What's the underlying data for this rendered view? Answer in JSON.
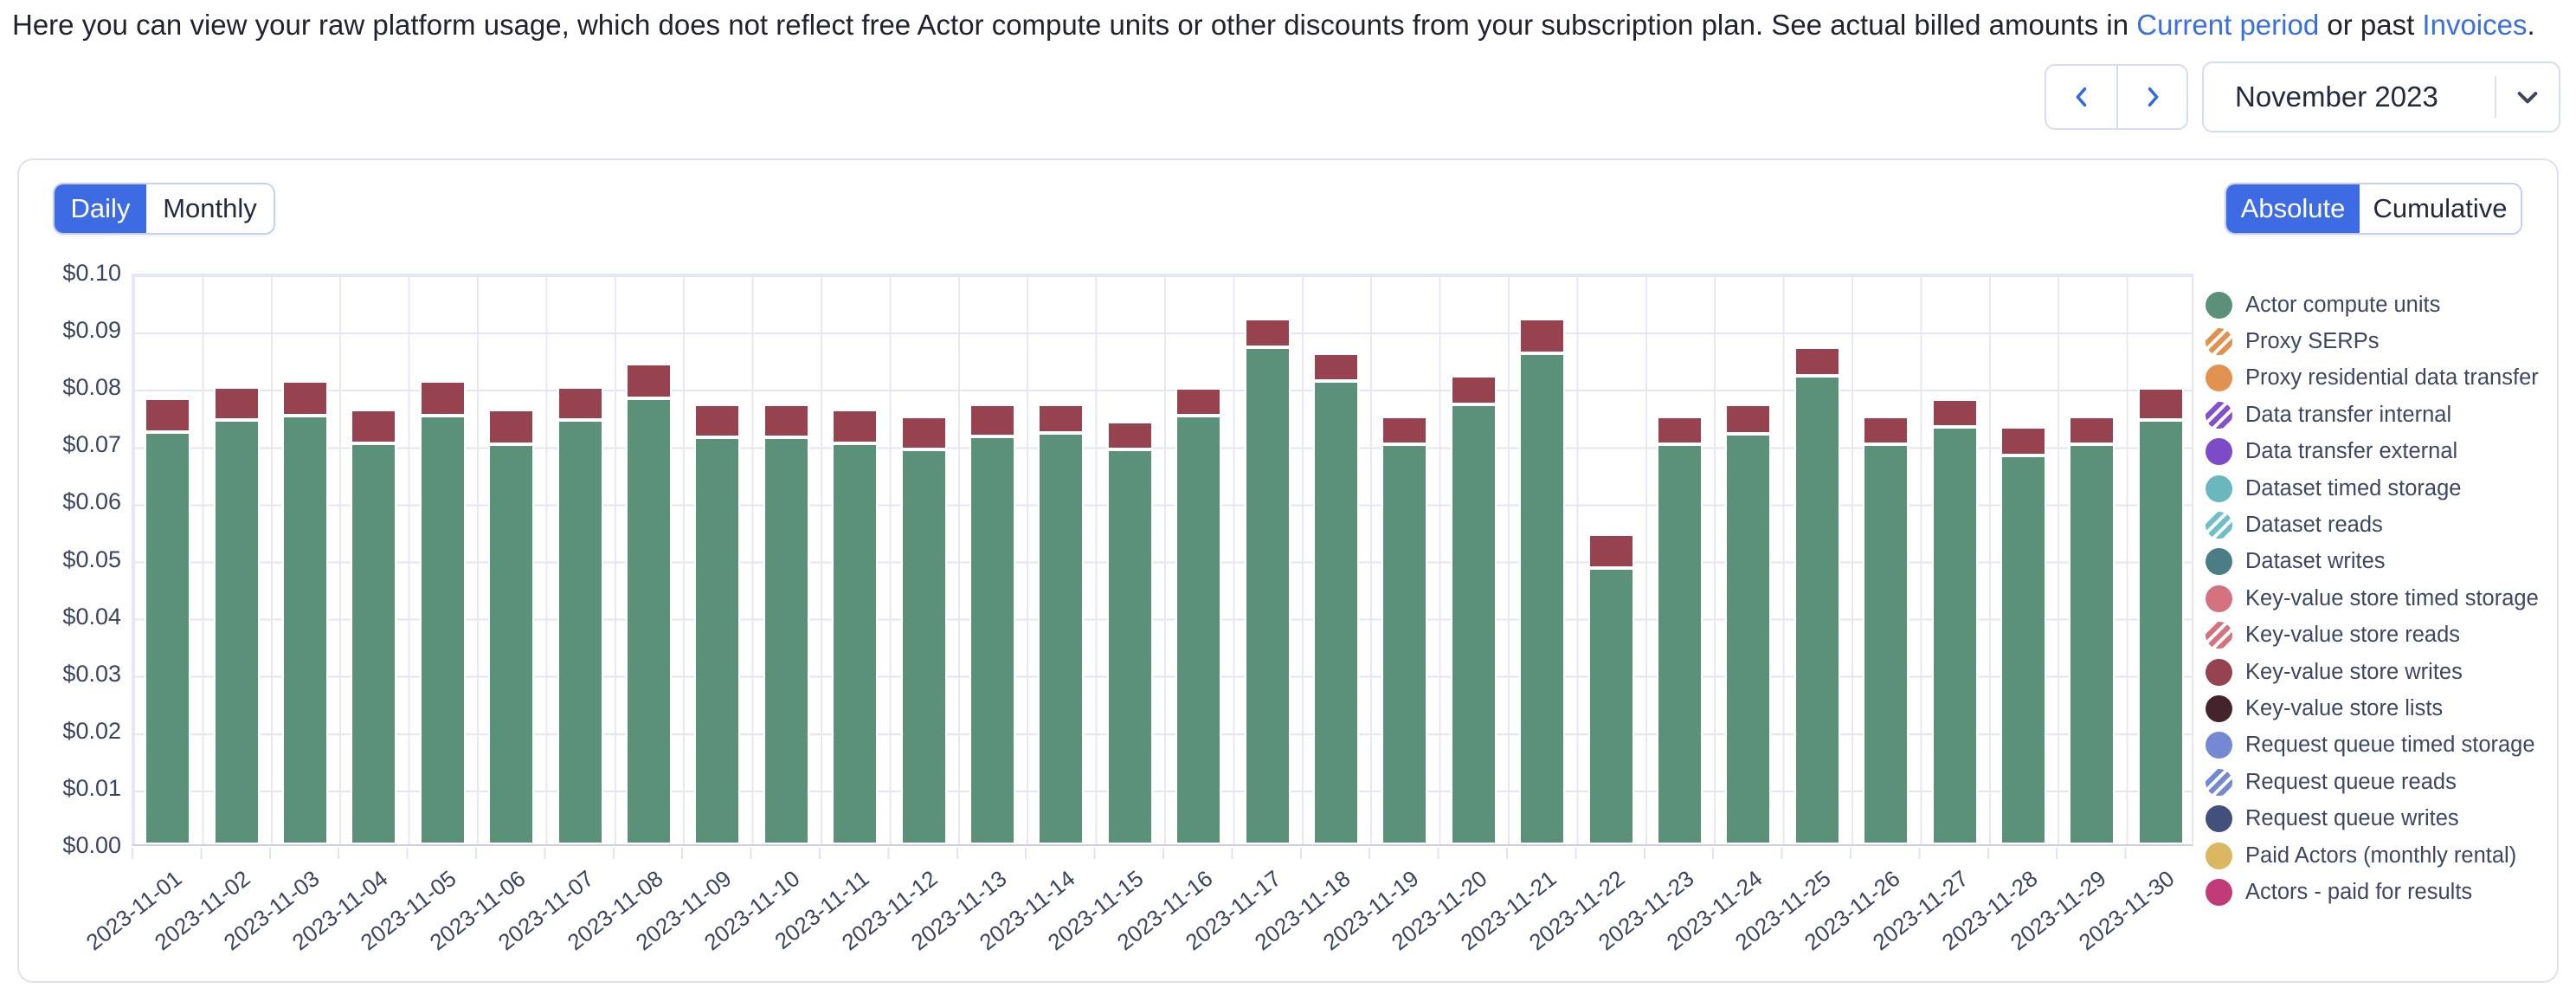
{
  "intro": {
    "text_before": "Here you can view your raw platform usage, which does not reflect free Actor compute units or other discounts from your subscription plan. See actual billed amounts in ",
    "link_current_period": "Current period",
    "text_between": " or past ",
    "link_invoices": "Invoices",
    "text_after": "."
  },
  "period_nav": {
    "prev_icon": "chevron-left",
    "next_icon": "chevron-right",
    "selected_period": "November 2023",
    "dropdown_icon": "chevron-down"
  },
  "toolbar": {
    "granularity": {
      "options": [
        "Daily",
        "Monthly"
      ],
      "selected": "Daily"
    },
    "mode": {
      "options": [
        "Absolute",
        "Cumulative"
      ],
      "selected": "Absolute"
    }
  },
  "colors": {
    "accent_blue": "#3d6be4",
    "link_blue": "#3b6fe0",
    "bar_green": "#5a9178",
    "bar_maroon": "#96424f",
    "gridline": "#e3e6f3",
    "axis_text": "#3b4560"
  },
  "chart_data": {
    "type": "bar",
    "stacked": true,
    "title": "",
    "xlabel": "",
    "ylabel": "",
    "ylim": [
      0,
      0.1
    ],
    "grid": true,
    "legend_position": "right",
    "y_ticks": [
      "$0.00",
      "$0.01",
      "$0.02",
      "$0.03",
      "$0.04",
      "$0.05",
      "$0.06",
      "$0.07",
      "$0.08",
      "$0.09",
      "$0.10"
    ],
    "categories": [
      "2023-11-01",
      "2023-11-02",
      "2023-11-03",
      "2023-11-04",
      "2023-11-05",
      "2023-11-06",
      "2023-11-07",
      "2023-11-08",
      "2023-11-09",
      "2023-11-10",
      "2023-11-11",
      "2023-11-12",
      "2023-11-13",
      "2023-11-14",
      "2023-11-15",
      "2023-11-16",
      "2023-11-17",
      "2023-11-18",
      "2023-11-19",
      "2023-11-20",
      "2023-11-21",
      "2023-11-22",
      "2023-11-23",
      "2023-11-24",
      "2023-11-25",
      "2023-11-26",
      "2023-11-27",
      "2023-11-28",
      "2023-11-29",
      "2023-11-30"
    ],
    "series": [
      {
        "name": "Actor compute units",
        "color": "#5a9178",
        "values": [
          0.072,
          0.0741,
          0.0749,
          0.07,
          0.0749,
          0.0699,
          0.0741,
          0.0779,
          0.0711,
          0.0711,
          0.07,
          0.069,
          0.0712,
          0.0719,
          0.069,
          0.0749,
          0.0869,
          0.081,
          0.0699,
          0.0769,
          0.0858,
          0.0482,
          0.0699,
          0.0717,
          0.0818,
          0.0699,
          0.0729,
          0.0679,
          0.0699,
          0.0742
        ]
      },
      {
        "name": "Key-value store writes",
        "color": "#96424f",
        "values": [
          0.0059,
          0.0058,
          0.006,
          0.0059,
          0.006,
          0.006,
          0.0058,
          0.006,
          0.0058,
          0.0058,
          0.0059,
          0.0058,
          0.0057,
          0.005,
          0.0049,
          0.0049,
          0.0049,
          0.0048,
          0.0049,
          0.0049,
          0.006,
          0.006,
          0.0049,
          0.0051,
          0.005,
          0.0049,
          0.0049,
          0.005,
          0.0049,
          0.0056
        ]
      }
    ]
  },
  "legend": {
    "items": [
      {
        "label": "Actor compute units",
        "color": "#5a9178",
        "pattern": "solid"
      },
      {
        "label": "Proxy SERPs",
        "color": "#e2924f",
        "pattern": "striped"
      },
      {
        "label": "Proxy residential data transfer",
        "color": "#e2924f",
        "pattern": "solid"
      },
      {
        "label": "Data transfer internal",
        "color": "#8550cb",
        "pattern": "striped"
      },
      {
        "label": "Data transfer external",
        "color": "#7d4bc8",
        "pattern": "solid"
      },
      {
        "label": "Dataset timed storage",
        "color": "#6ab8bd",
        "pattern": "solid"
      },
      {
        "label": "Dataset reads",
        "color": "#6fc0c6",
        "pattern": "striped"
      },
      {
        "label": "Dataset writes",
        "color": "#4b7e84",
        "pattern": "solid"
      },
      {
        "label": "Key-value store timed storage",
        "color": "#d4727f",
        "pattern": "solid"
      },
      {
        "label": "Key-value store reads",
        "color": "#d4727f",
        "pattern": "striped"
      },
      {
        "label": "Key-value store writes",
        "color": "#96424f",
        "pattern": "solid"
      },
      {
        "label": "Key-value store lists",
        "color": "#44242c",
        "pattern": "solid"
      },
      {
        "label": "Request queue timed storage",
        "color": "#7488d4",
        "pattern": "solid"
      },
      {
        "label": "Request queue reads",
        "color": "#7488d4",
        "pattern": "striped"
      },
      {
        "label": "Request queue writes",
        "color": "#43507c",
        "pattern": "solid"
      },
      {
        "label": "Paid Actors (monthly rental)",
        "color": "#dcb761",
        "pattern": "solid"
      },
      {
        "label": "Actors - paid for results",
        "color": "#c13a78",
        "pattern": "solid"
      }
    ]
  }
}
